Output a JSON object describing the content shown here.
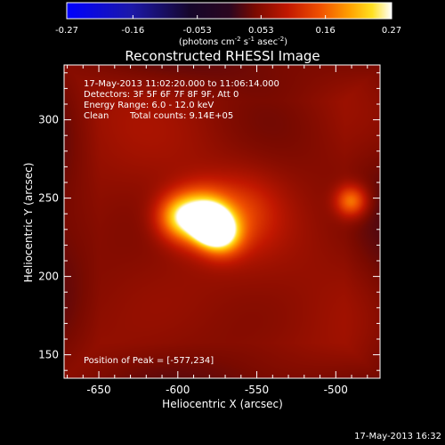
{
  "chart_data": {
    "type": "heatmap",
    "title": "Reconstructed RHESSI Image",
    "colorbar": {
      "ticks": [
        -0.27,
        -0.16,
        -0.053,
        0.053,
        0.16,
        0.27
      ],
      "tick_labels": [
        "-0.27",
        "-0.16",
        "-0.053",
        "0.053",
        "0.16",
        "0.27"
      ],
      "range": [
        -0.27,
        0.27
      ],
      "unit_text": "(photons cm",
      "unit_sup1": "-2",
      "unit_mid": " s",
      "unit_sup2": "-1",
      "unit_mid2": " asec",
      "unit_sup3": "-2",
      "unit_close": ")",
      "colormap": "fire (blue-black-purple-red-orange-yellow-white)"
    },
    "xlabel": "Heliocentric X (arcsec)",
    "ylabel": "Heliocentric Y (arcsec)",
    "xlim": [
      -672,
      -472
    ],
    "ylim": [
      135,
      335
    ],
    "x_ticks": [
      -650,
      -600,
      -550,
      -500
    ],
    "x_tick_labels": [
      "-650",
      "-600",
      "-550",
      "-500"
    ],
    "y_ticks": [
      150,
      200,
      250,
      300
    ],
    "y_tick_labels": [
      "150",
      "200",
      "250",
      "300"
    ],
    "background_level": 0.06,
    "sources": [
      {
        "x": -579,
        "y": 233,
        "peak": 0.27,
        "sigma": 7
      },
      {
        "x": -585,
        "y": 238,
        "peak": 0.2,
        "sigma": 12
      },
      {
        "x": -572,
        "y": 226,
        "peak": 0.15,
        "sigma": 9
      },
      {
        "x": -600,
        "y": 238,
        "peak": 0.12,
        "sigma": 10
      },
      {
        "x": -560,
        "y": 240,
        "peak": 0.06,
        "sigma": 16
      },
      {
        "x": -490,
        "y": 248,
        "peak": 0.13,
        "sigma": 7
      }
    ],
    "annotations": {
      "time_range": "17-May-2013 11:02:20.000 to 11:06:14.000",
      "detectors": "Detectors: 3F 5F 6F 7F 8F 9F, Att 0",
      "energy_range": "Energy Range: 6.0 - 12.0 keV",
      "clean_label": "Clean",
      "total_counts": "Total counts: 9.14E+05",
      "peak_position": "Position of Peak = [-577,234]"
    },
    "timestamp": "17-May-2013 16:32"
  }
}
